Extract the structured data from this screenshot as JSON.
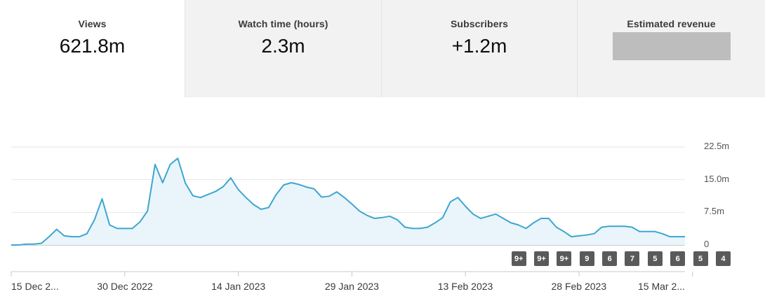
{
  "metrics": [
    {
      "label": "Views",
      "value": "621.8m"
    },
    {
      "label": "Watch time (hours)",
      "value": "2.3m"
    },
    {
      "label": "Subscribers",
      "value": "+1.2m"
    },
    {
      "label": "Estimated revenue",
      "value": ""
    }
  ],
  "colors": {
    "line": "#3ea6cf",
    "fill": "#e9f5fa",
    "marker": "#5a5a5a"
  },
  "chart_data": {
    "type": "area",
    "series": [
      {
        "name": "Views",
        "start_date": "15 Dec 2022",
        "values": [
          0,
          0,
          0.2,
          0.2,
          0.4,
          1.9,
          3.6,
          2.1,
          1.9,
          1.9,
          2.6,
          5.8,
          10.6,
          4.6,
          3.8,
          3.8,
          3.8,
          5.3,
          7.8,
          18.5,
          14.3,
          18.5,
          19.9,
          14.2,
          11.3,
          10.9,
          11.6,
          12.3,
          13.4,
          15.4,
          12.7,
          10.9,
          9.3,
          8.2,
          8.6,
          11.6,
          13.8,
          14.3,
          13.9,
          13.3,
          12.9,
          11.0,
          11.2,
          12.2,
          10.9,
          9.4,
          7.8,
          6.8,
          6.1,
          6.3,
          6.6,
          5.8,
          4.1,
          3.8,
          3.8,
          4.1,
          5.1,
          6.3,
          9.9,
          10.9,
          8.9,
          7.1,
          6.1,
          6.6,
          7.1,
          6.1,
          5.1,
          4.6,
          3.8,
          5.1,
          6.1,
          6.1,
          4.1,
          3.1,
          1.9,
          2.1,
          2.3,
          2.6,
          4.1,
          4.3,
          4.3,
          4.3,
          4.1,
          3.1,
          3.1,
          3.1,
          2.6,
          1.9,
          1.9,
          1.9
        ]
      }
    ],
    "x_tick_labels": [
      "15 Dec 2...",
      "30 Dec 2022",
      "14 Jan 2023",
      "29 Jan 2023",
      "13 Feb 2023",
      "28 Feb 2023",
      "15 Mar 2..."
    ],
    "y_tick_labels": [
      "22.5m",
      "15.0m",
      "7.5m",
      "0"
    ],
    "y_ticks": [
      22.5,
      15,
      7.5,
      0
    ],
    "ylim": [
      0,
      22.5
    ],
    "grid": true,
    "markers": [
      {
        "label": "9+",
        "day": 67
      },
      {
        "label": "9+",
        "day": 70
      },
      {
        "label": "9+",
        "day": 73
      },
      {
        "label": "9",
        "day": 76
      },
      {
        "label": "6",
        "day": 79
      },
      {
        "label": "7",
        "day": 82
      },
      {
        "label": "5",
        "day": 85
      },
      {
        "label": "6",
        "day": 88
      },
      {
        "label": "5",
        "day": 91
      },
      {
        "label": "4",
        "day": 94
      }
    ],
    "x_tick_days": [
      0,
      15,
      30,
      45,
      60,
      75,
      90
    ]
  }
}
